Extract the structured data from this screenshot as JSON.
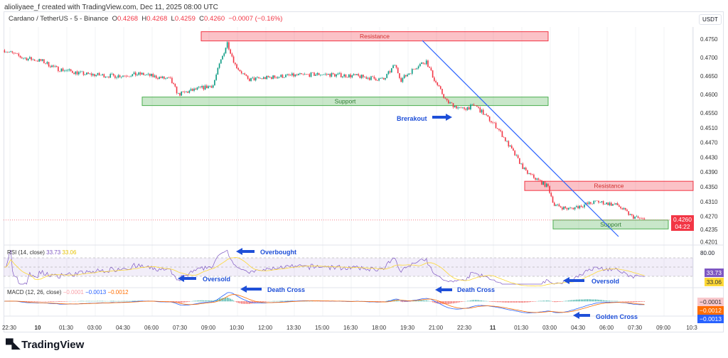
{
  "credit": "alioliyaee_f created with TradingView.com, Dec 11, 2025 08:00 UTC",
  "legend": {
    "symbol": "Cardano / TetherUS - 5 - Binance",
    "o_label": "O",
    "o": "0.4268",
    "h_label": "H",
    "h": "0.4268",
    "l_label": "L",
    "l": "0.4259",
    "c_label": "C",
    "c": "0.4260",
    "change": "−0.0007 (−0.16%)"
  },
  "currency": "USDT",
  "price_axis": [
    "0.4750",
    "0.4700",
    "0.4650",
    "0.4600",
    "0.4550",
    "0.4510",
    "0.4470",
    "0.4430",
    "0.4390",
    "0.4350",
    "0.4310",
    "0.4270",
    "0.4235",
    "0.4201"
  ],
  "last_price": {
    "value": "0.4260",
    "countdown": "04:22",
    "color": "#f23645"
  },
  "rsi": {
    "title": "RSI (14, close)",
    "value": "33.73",
    "ma": "33.06",
    "level_label": "80.00",
    "color": "#7e57c2",
    "ma_color": "#fdd835"
  },
  "macd": {
    "title": "MACD (12, 26, close)",
    "hist": "−0.0001",
    "macd": "−0.0013",
    "signal": "−0.0012",
    "macd_color": "#2962ff",
    "signal_color": "#ff6d00"
  },
  "time_axis": [
    "22:30",
    "10",
    "01:30",
    "03:00",
    "04:30",
    "06:00",
    "07:30",
    "09:00",
    "10:30",
    "12:00",
    "13:30",
    "15:00",
    "16:30",
    "18:00",
    "19:30",
    "21:00",
    "22:30",
    "11",
    "01:30",
    "03:00",
    "04:30",
    "06:00",
    "07:30",
    "09:00",
    "10:3"
  ],
  "annotations": {
    "resistance1": "Resistance",
    "support1": "Support",
    "resistance2": "Resistance",
    "support2": "Support",
    "breakout": "Brerakout",
    "overbought": "Overbought",
    "oversold1": "Oversold",
    "oversold2": "Oversold",
    "death_cross1": "Death Cross",
    "death_cross2": "Death Cross",
    "golden_cross": "Golden Cross"
  },
  "brand": "TradingView",
  "chart_data": {
    "type": "candlestick",
    "interval": "5m",
    "ylabel": "USDT",
    "close_path": [
      [
        "09 22:15",
        0.472
      ],
      [
        "09 23:10",
        0.47
      ],
      [
        "10 00:15",
        0.469
      ],
      [
        "10 01:00",
        0.467
      ],
      [
        "10 02:30",
        0.4655
      ],
      [
        "10 04:00",
        0.465
      ],
      [
        "10 05:30",
        0.4655
      ],
      [
        "10 07:00",
        0.464
      ],
      [
        "10 07:25",
        0.46
      ],
      [
        "10 08:05",
        0.461
      ],
      [
        "10 09:15",
        0.4625
      ],
      [
        "10 09:35",
        0.468
      ],
      [
        "10 10:00",
        0.474
      ],
      [
        "10 10:25",
        0.468
      ],
      [
        "10 11:05",
        0.464
      ],
      [
        "10 13:00",
        0.465
      ],
      [
        "10 14:55",
        0.4655
      ],
      [
        "10 16:45",
        0.465
      ],
      [
        "10 18:15",
        0.464
      ],
      [
        "10 18:50",
        0.468
      ],
      [
        "10 19:10",
        0.464
      ],
      [
        "10 20:05",
        0.468
      ],
      [
        "10 20:30",
        0.469
      ],
      [
        "10 20:55",
        0.464
      ],
      [
        "10 21:35",
        0.458
      ],
      [
        "10 22:20",
        0.456
      ],
      [
        "10 23:05",
        0.457
      ],
      [
        "11 00:15",
        0.451
      ],
      [
        "11 01:00",
        0.445
      ],
      [
        "11 01:45",
        0.439
      ],
      [
        "11 02:55",
        0.435
      ],
      [
        "11 03:15",
        0.43
      ],
      [
        "11 04:00",
        0.429
      ],
      [
        "11 04:45",
        0.43
      ],
      [
        "11 05:30",
        0.431
      ],
      [
        "11 06:35",
        0.43
      ],
      [
        "11 07:20",
        0.427
      ],
      [
        "11 08:00",
        0.426
      ]
    ],
    "zones": {
      "resistance1": [
        0.4745,
        0.477
      ],
      "support1": [
        0.457,
        0.4593
      ],
      "resistance2": [
        0.434,
        0.4365
      ],
      "support2": [
        0.4236,
        0.426
      ]
    },
    "up_color": "#089981",
    "down_color": "#f23645"
  }
}
